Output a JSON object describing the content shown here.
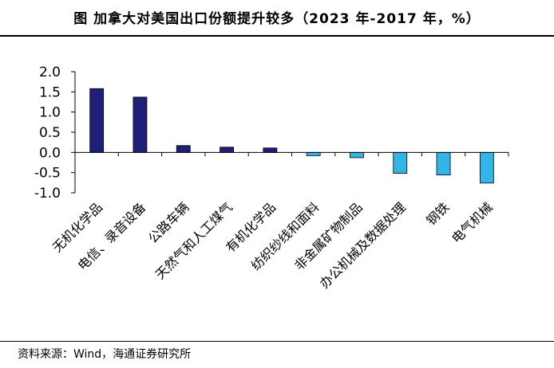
{
  "header": {
    "title": "图  加拿大对美国出口份额提升较多（2023 年-2017 年，%）"
  },
  "footer": {
    "source": "资料来源：Wind，海通证券研究所"
  },
  "colors": {
    "positive": "#1f1f7a",
    "negative": "#33b5e8",
    "axis": "#000000"
  },
  "chart_data": {
    "type": "bar",
    "categories": [
      "无机化学品",
      "电信、录音设备",
      "公路车辆",
      "天然气和人工煤气",
      "有机化学品",
      "纺织纱线和面料",
      "非金属矿物制品",
      "办公机械及数据处理",
      "钢铁",
      "电气机械"
    ],
    "values": [
      1.58,
      1.37,
      0.17,
      0.13,
      0.11,
      -0.08,
      -0.13,
      -0.52,
      -0.56,
      -0.76
    ],
    "yticks": [
      "2.0",
      "1.5",
      "1.0",
      "0.5",
      "0.0",
      "-0.5",
      "-1.0"
    ],
    "ylim": [
      -1.0,
      2.0
    ],
    "xlabel": "",
    "ylabel": "",
    "grid": false,
    "legend": "none"
  }
}
